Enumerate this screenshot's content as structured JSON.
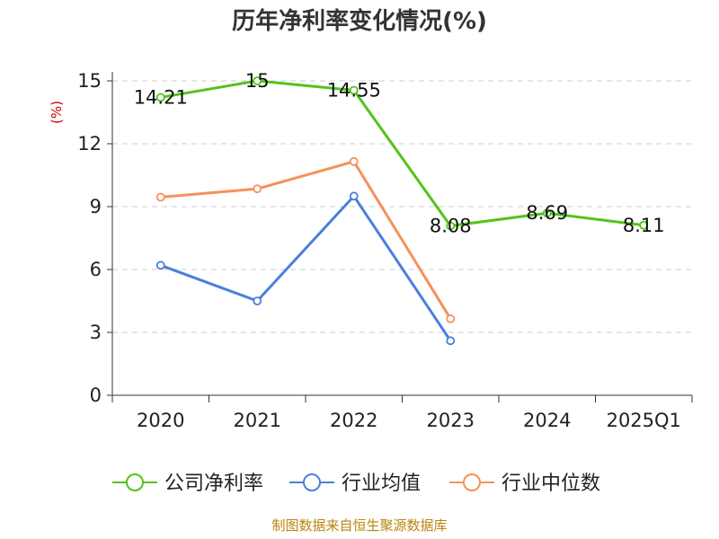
{
  "chart_data": {
    "type": "line",
    "title": "历年净利率变化情况(%)",
    "xlabel": "",
    "ylabel": "(%)",
    "ylim": [
      0,
      15
    ],
    "yticks": [
      0,
      3,
      6,
      9,
      12,
      15
    ],
    "categories": [
      "2020",
      "2021",
      "2022",
      "2023",
      "2024",
      "2025Q1"
    ],
    "grid": true,
    "legend_position": "bottom",
    "series": [
      {
        "name": "公司净利率",
        "color": "#52c41a",
        "values": [
          14.21,
          15,
          14.55,
          8.08,
          8.69,
          8.11
        ],
        "labels": [
          "14.21",
          "15",
          "14.55",
          "8.08",
          "8.69",
          "8.11"
        ]
      },
      {
        "name": "行业均值",
        "color": "#4a7fdb",
        "values": [
          6.2,
          4.5,
          9.5,
          2.6,
          null,
          null
        ]
      },
      {
        "name": "行业中位数",
        "color": "#f5915a",
        "values": [
          9.45,
          9.85,
          11.15,
          3.65,
          null,
          null
        ]
      }
    ],
    "source": "制图数据来自恒生聚源数据库"
  }
}
